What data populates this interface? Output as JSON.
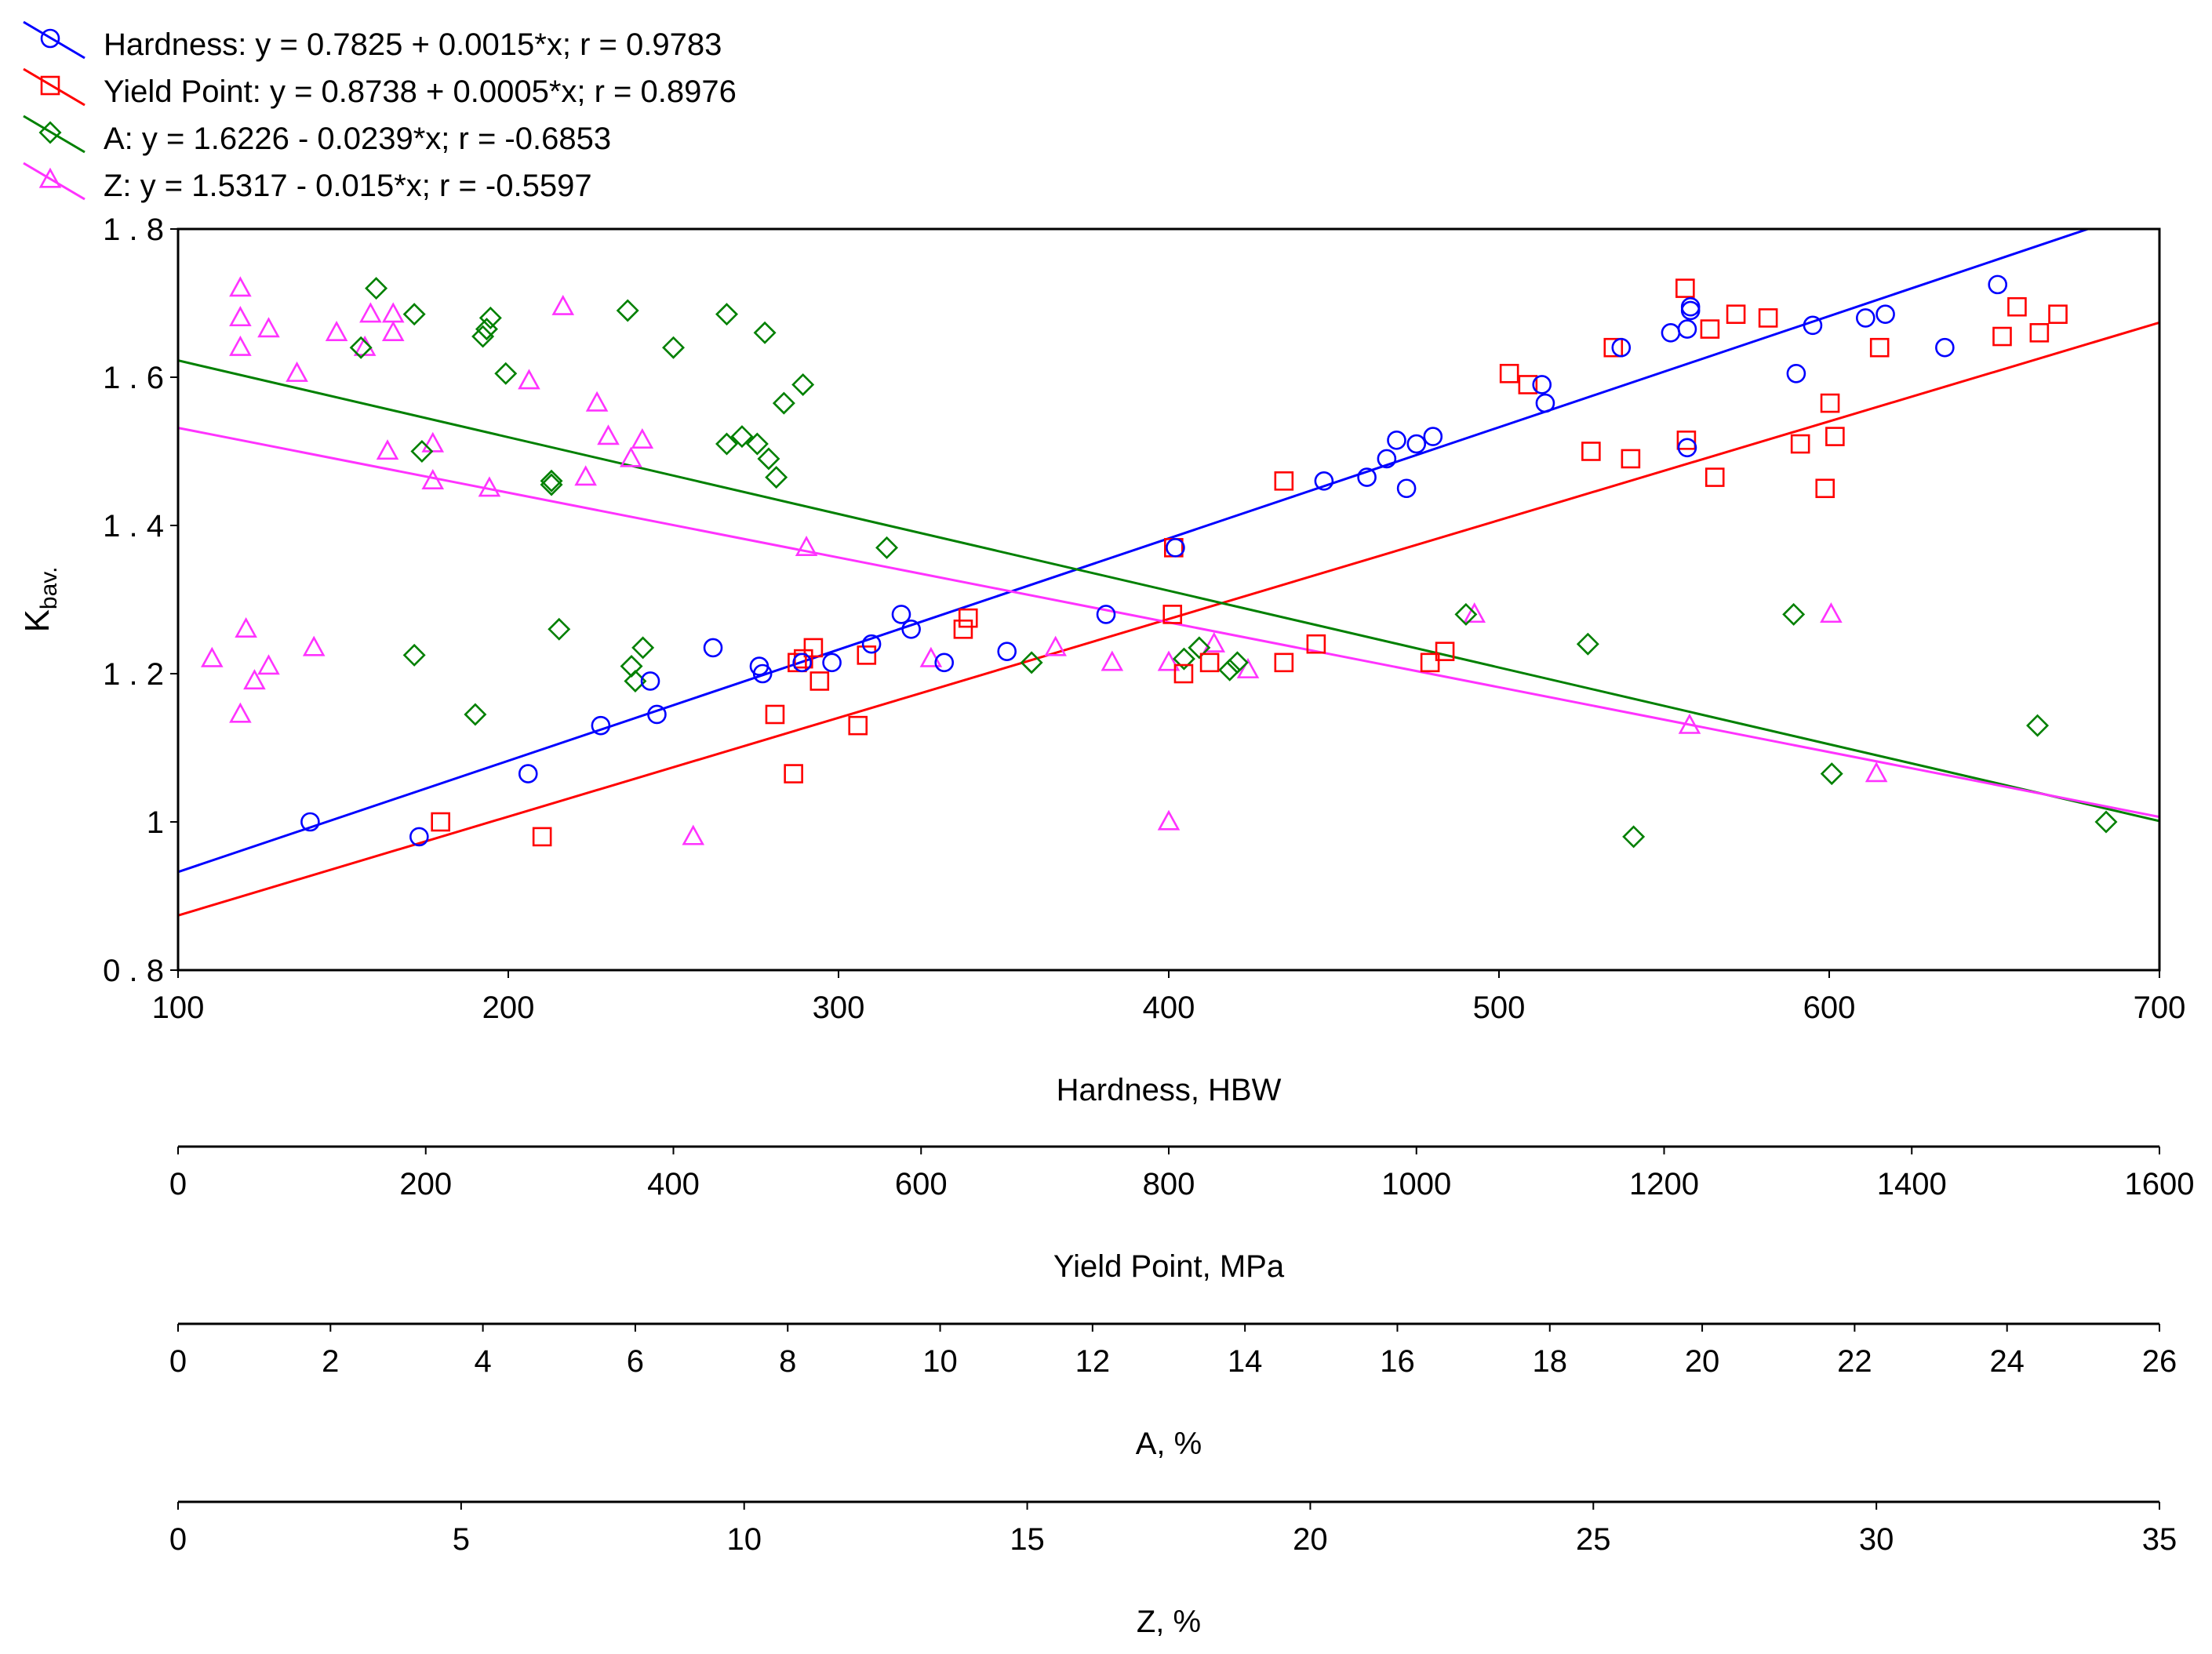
{
  "chart_data": {
    "type": "scatter",
    "ylabel": {
      "main": "K",
      "sub": "bav."
    },
    "ylim": [
      0.8,
      1.8
    ],
    "yticks": [
      0.8,
      1,
      1.2,
      1.4,
      1.6,
      1.8
    ],
    "ytick_labels": [
      "0 . 8",
      "1",
      "1 . 2",
      "1 . 4",
      "1 . 6",
      "1 . 8"
    ],
    "x_axes": [
      {
        "key": "hardness",
        "title": "Hardness, HBW",
        "range": [
          100,
          700
        ],
        "ticks": [
          100,
          200,
          300,
          400,
          500,
          600,
          700
        ]
      },
      {
        "key": "yield",
        "title": "Yield Point, MPa",
        "range": [
          0,
          1600
        ],
        "ticks": [
          0,
          200,
          400,
          600,
          800,
          1000,
          1200,
          1400,
          1600
        ]
      },
      {
        "key": "A",
        "title": "A, %",
        "range": [
          0,
          26
        ],
        "ticks": [
          0,
          2,
          4,
          6,
          8,
          10,
          12,
          14,
          16,
          18,
          20,
          22,
          24,
          26
        ]
      },
      {
        "key": "Z",
        "title": "Z, %",
        "range": [
          0,
          35
        ],
        "ticks": [
          0,
          5,
          10,
          15,
          20,
          25,
          30,
          35
        ]
      }
    ],
    "series": [
      {
        "name": "Hardness",
        "legend": "Hardness: y = 0.7825 + 0.0015*x; r = 0.9783",
        "color": "#0000ff",
        "marker": "circle",
        "axis": "hardness",
        "fit": {
          "intercept": 0.7825,
          "slope": 0.0015
        },
        "points": [
          [
            140,
            1.0
          ],
          [
            173,
            0.98
          ],
          [
            206,
            1.065
          ],
          [
            228,
            1.13
          ],
          [
            243,
            1.19
          ],
          [
            245,
            1.145
          ],
          [
            262,
            1.235
          ],
          [
            276,
            1.21
          ],
          [
            277,
            1.2
          ],
          [
            289,
            1.215
          ],
          [
            298,
            1.215
          ],
          [
            310,
            1.24
          ],
          [
            319,
            1.28
          ],
          [
            322,
            1.26
          ],
          [
            332,
            1.215
          ],
          [
            351,
            1.23
          ],
          [
            381,
            1.28
          ],
          [
            402,
            1.37
          ],
          [
            447,
            1.46
          ],
          [
            460,
            1.465
          ],
          [
            466,
            1.49
          ],
          [
            469,
            1.515
          ],
          [
            472,
            1.45
          ],
          [
            475,
            1.51
          ],
          [
            480,
            1.52
          ],
          [
            513,
            1.59
          ],
          [
            514,
            1.565
          ],
          [
            537,
            1.64
          ],
          [
            552,
            1.66
          ],
          [
            557,
            1.505
          ],
          [
            557,
            1.665
          ],
          [
            558,
            1.69
          ],
          [
            558,
            1.695
          ],
          [
            590,
            1.605
          ],
          [
            595,
            1.67
          ],
          [
            611,
            1.68
          ],
          [
            617,
            1.685
          ],
          [
            635,
            1.64
          ],
          [
            651,
            1.725
          ]
        ]
      },
      {
        "name": "Yield Point",
        "legend": "Yield Point: y = 0.8738 + 0.0005*x; r = 0.8976",
        "color": "#ff0000",
        "marker": "square",
        "axis": "yield",
        "fit": {
          "intercept": 0.8738,
          "slope": 0.0005
        },
        "points": [
          [
            212,
            1.0
          ],
          [
            294,
            0.98
          ],
          [
            482,
            1.145
          ],
          [
            497,
            1.065
          ],
          [
            500,
            1.215
          ],
          [
            505,
            1.22
          ],
          [
            513,
            1.235
          ],
          [
            518,
            1.19
          ],
          [
            549,
            1.13
          ],
          [
            556,
            1.225
          ],
          [
            634,
            1.26
          ],
          [
            638,
            1.275
          ],
          [
            803,
            1.28
          ],
          [
            804,
            1.37
          ],
          [
            812,
            1.2
          ],
          [
            833,
            1.215
          ],
          [
            893,
            1.46
          ],
          [
            893,
            1.215
          ],
          [
            919,
            1.24
          ],
          [
            1011,
            1.215
          ],
          [
            1023,
            1.23
          ],
          [
            1075,
            1.605
          ],
          [
            1090,
            1.59
          ],
          [
            1141,
            1.5
          ],
          [
            1159,
            1.64
          ],
          [
            1173,
            1.49
          ],
          [
            1217,
            1.72
          ],
          [
            1218,
            1.515
          ],
          [
            1237,
            1.665
          ],
          [
            1241,
            1.465
          ],
          [
            1258,
            1.685
          ],
          [
            1284,
            1.68
          ],
          [
            1310,
            1.51
          ],
          [
            1330,
            1.45
          ],
          [
            1334,
            1.565
          ],
          [
            1338,
            1.52
          ],
          [
            1374,
            1.64
          ],
          [
            1473,
            1.655
          ],
          [
            1485,
            1.695
          ],
          [
            1503,
            1.66
          ],
          [
            1518,
            1.685
          ]
        ]
      },
      {
        "name": "A",
        "legend": "A: y = 1.6226 - 0.0239*x; r = -0.6853",
        "color": "#008000",
        "marker": "diamond",
        "axis": "A",
        "fit": {
          "intercept": 1.6226,
          "slope": -0.0239
        },
        "points": [
          [
            2.4,
            1.64
          ],
          [
            2.6,
            1.72
          ],
          [
            3.1,
            1.685
          ],
          [
            3.1,
            1.225
          ],
          [
            3.2,
            1.5
          ],
          [
            3.9,
            1.145
          ],
          [
            4.0,
            1.655
          ],
          [
            4.05,
            1.665
          ],
          [
            4.1,
            1.68
          ],
          [
            4.3,
            1.605
          ],
          [
            4.9,
            1.455
          ],
          [
            4.9,
            1.46
          ],
          [
            5.0,
            1.26
          ],
          [
            5.9,
            1.69
          ],
          [
            5.95,
            1.21
          ],
          [
            6.0,
            1.19
          ],
          [
            6.1,
            1.235
          ],
          [
            6.5,
            1.64
          ],
          [
            7.2,
            1.685
          ],
          [
            7.2,
            1.51
          ],
          [
            7.4,
            1.52
          ],
          [
            7.6,
            1.51
          ],
          [
            7.7,
            1.66
          ],
          [
            7.75,
            1.49
          ],
          [
            7.85,
            1.465
          ],
          [
            7.95,
            1.565
          ],
          [
            8.2,
            1.59
          ],
          [
            9.3,
            1.37
          ],
          [
            11.2,
            1.215
          ],
          [
            13.2,
            1.22
          ],
          [
            13.4,
            1.235
          ],
          [
            13.8,
            1.205
          ],
          [
            13.9,
            1.215
          ],
          [
            16.9,
            1.28
          ],
          [
            18.5,
            1.24
          ],
          [
            19.1,
            0.98
          ],
          [
            21.2,
            1.28
          ],
          [
            21.7,
            1.065
          ],
          [
            24.4,
            1.13
          ],
          [
            25.3,
            1.0
          ]
        ]
      },
      {
        "name": "Z",
        "legend": "Z: y = 1.5317 - 0.015*x; r = -0.5597",
        "color": "#ff33ff",
        "marker": "triangle",
        "axis": "Z",
        "fit": {
          "intercept": 1.5317,
          "slope": -0.015
        },
        "points": [
          [
            0.6,
            1.22
          ],
          [
            1.1,
            1.145
          ],
          [
            1.1,
            1.72
          ],
          [
            1.1,
            1.68
          ],
          [
            1.1,
            1.64
          ],
          [
            1.2,
            1.26
          ],
          [
            1.35,
            1.19
          ],
          [
            1.6,
            1.21
          ],
          [
            1.6,
            1.665
          ],
          [
            2.1,
            1.605
          ],
          [
            2.4,
            1.235
          ],
          [
            2.8,
            1.66
          ],
          [
            3.3,
            1.64
          ],
          [
            3.4,
            1.685
          ],
          [
            3.7,
            1.5
          ],
          [
            3.8,
            1.685
          ],
          [
            3.8,
            1.66
          ],
          [
            4.5,
            1.51
          ],
          [
            4.5,
            1.46
          ],
          [
            5.5,
            1.45
          ],
          [
            6.2,
            1.595
          ],
          [
            6.8,
            1.695
          ],
          [
            7.2,
            1.465
          ],
          [
            7.4,
            1.565
          ],
          [
            7.6,
            1.52
          ],
          [
            8.0,
            1.49
          ],
          [
            8.2,
            1.515
          ],
          [
            9.1,
            0.98
          ],
          [
            11.1,
            1.37
          ],
          [
            13.3,
            1.22
          ],
          [
            15.5,
            1.235
          ],
          [
            16.5,
            1.215
          ],
          [
            17.5,
            1.215
          ],
          [
            17.5,
            1.0
          ],
          [
            18.3,
            1.24
          ],
          [
            18.9,
            1.205
          ],
          [
            22.9,
            1.28
          ],
          [
            26.7,
            1.13
          ],
          [
            29.2,
            1.28
          ],
          [
            30.0,
            1.065
          ]
        ]
      }
    ]
  }
}
